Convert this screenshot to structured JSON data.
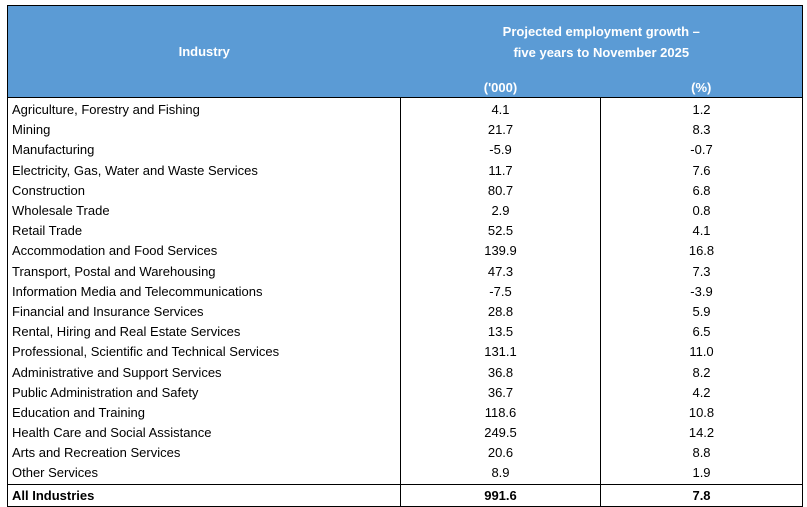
{
  "header": {
    "industry_label": "Industry",
    "growth_line1": "Projected employment growth –",
    "growth_line2": "five years to November 2025",
    "unit_thousands": "('000)",
    "unit_percent": "(%)"
  },
  "rows": [
    {
      "industry": "Agriculture, Forestry and Fishing",
      "thousands": "4.1",
      "percent": "1.2"
    },
    {
      "industry": "Mining",
      "thousands": "21.7",
      "percent": "8.3"
    },
    {
      "industry": "Manufacturing",
      "thousands": "-5.9",
      "percent": "-0.7"
    },
    {
      "industry": "Electricity, Gas, Water and Waste Services",
      "thousands": "11.7",
      "percent": "7.6"
    },
    {
      "industry": "Construction",
      "thousands": "80.7",
      "percent": "6.8"
    },
    {
      "industry": "Wholesale Trade",
      "thousands": "2.9",
      "percent": "0.8"
    },
    {
      "industry": "Retail Trade",
      "thousands": "52.5",
      "percent": "4.1"
    },
    {
      "industry": "Accommodation and Food Services",
      "thousands": "139.9",
      "percent": "16.8"
    },
    {
      "industry": "Transport, Postal and Warehousing",
      "thousands": "47.3",
      "percent": "7.3"
    },
    {
      "industry": "Information Media and Telecommunications",
      "thousands": "-7.5",
      "percent": "-3.9"
    },
    {
      "industry": "Financial and Insurance Services",
      "thousands": "28.8",
      "percent": "5.9"
    },
    {
      "industry": "Rental, Hiring and Real Estate Services",
      "thousands": "13.5",
      "percent": "6.5"
    },
    {
      "industry": "Professional, Scientific and Technical Services",
      "thousands": "131.1",
      "percent": "11.0"
    },
    {
      "industry": "Administrative and Support Services",
      "thousands": "36.8",
      "percent": "8.2"
    },
    {
      "industry": "Public Administration and Safety",
      "thousands": "36.7",
      "percent": "4.2"
    },
    {
      "industry": "Education and Training",
      "thousands": "118.6",
      "percent": "10.8"
    },
    {
      "industry": "Health Care and Social Assistance",
      "thousands": "249.5",
      "percent": "14.2"
    },
    {
      "industry": "Arts and Recreation Services",
      "thousands": "20.6",
      "percent": "8.8"
    },
    {
      "industry": "Other Services",
      "thousands": "8.9",
      "percent": "1.9"
    }
  ],
  "total": {
    "industry": "All Industries",
    "thousands": "991.6",
    "percent": "7.8"
  },
  "colors": {
    "header_bg": "#5b9bd5",
    "header_text": "#ffffff"
  }
}
